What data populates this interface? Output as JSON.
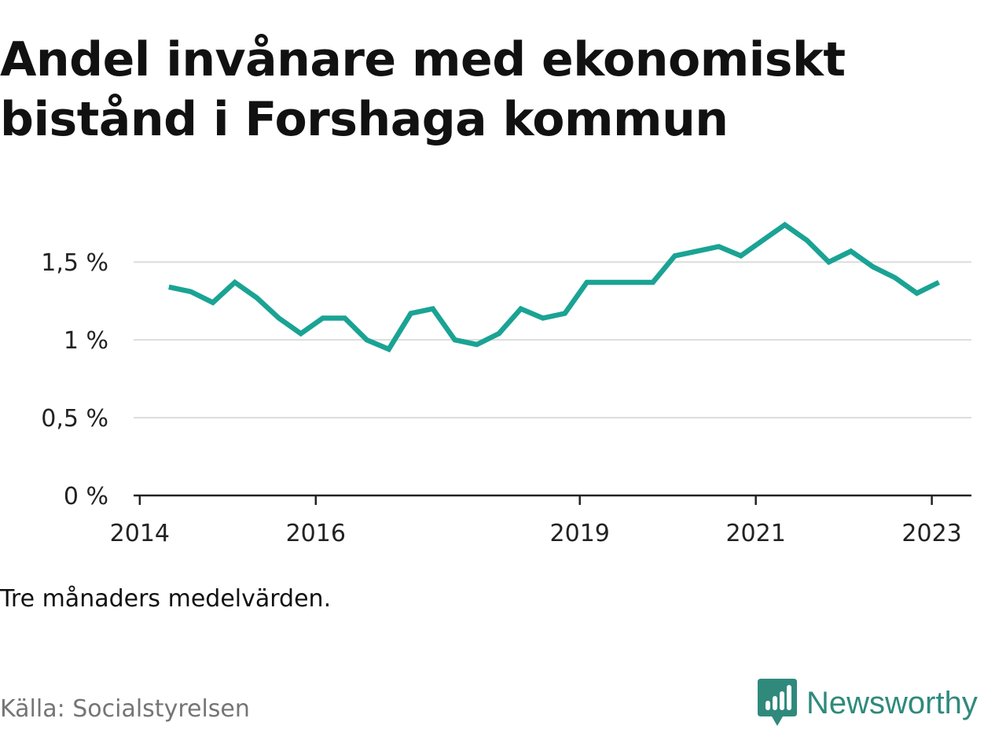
{
  "title": "Andel invånare med ekonomiskt bistånd i Forshaga kommun",
  "note": "Tre månaders medelvärden.",
  "source": "Källa: Socialstyrelsen",
  "brand": {
    "name": "Newsworthy",
    "icon": "newsworthy-logo-icon",
    "color": "#2f8a7c"
  },
  "chart_data": {
    "type": "line",
    "title": "Andel invånare med ekonomiskt bistånd i Forshaga kommun",
    "xlabel": "",
    "ylabel": "",
    "ylim": [
      0,
      1.85
    ],
    "grid": true,
    "line_color": "#1aa394",
    "y_ticks": [
      {
        "value": 0,
        "label": "0 %"
      },
      {
        "value": 0.5,
        "label": "0,5 %"
      },
      {
        "value": 1,
        "label": "1 %"
      },
      {
        "value": 1.5,
        "label": "1,5 %"
      }
    ],
    "x_ticks": [
      {
        "value": 2014.0,
        "label": "2014"
      },
      {
        "value": 2016.0,
        "label": "2016"
      },
      {
        "value": 2019.0,
        "label": "2019"
      },
      {
        "value": 2021.0,
        "label": "2021"
      },
      {
        "value": 2023.0,
        "label": "2023"
      }
    ],
    "series": [
      {
        "x": [
          2014.33,
          2014.58,
          2014.83,
          2015.08,
          2015.33,
          2015.58,
          2015.83,
          2016.08,
          2016.33,
          2016.58,
          2016.83,
          2017.08,
          2017.33,
          2017.58,
          2017.83,
          2018.08,
          2018.33,
          2018.58,
          2018.83,
          2019.08,
          2019.33,
          2019.58,
          2019.83,
          2020.08,
          2020.33,
          2020.58,
          2020.83,
          2021.08,
          2021.33,
          2021.58,
          2021.83,
          2022.08,
          2022.33,
          2022.58,
          2022.83,
          2023.08
        ],
        "values": [
          1.34,
          1.31,
          1.24,
          1.37,
          1.27,
          1.14,
          1.04,
          1.14,
          1.14,
          1.0,
          0.94,
          1.17,
          1.2,
          1.0,
          0.97,
          1.04,
          1.2,
          1.14,
          1.17,
          1.37,
          1.37,
          1.37,
          1.37,
          1.54,
          1.57,
          1.6,
          1.54,
          1.64,
          1.74,
          1.64,
          1.5,
          1.57,
          1.47,
          1.4,
          1.3,
          1.37
        ]
      }
    ]
  }
}
